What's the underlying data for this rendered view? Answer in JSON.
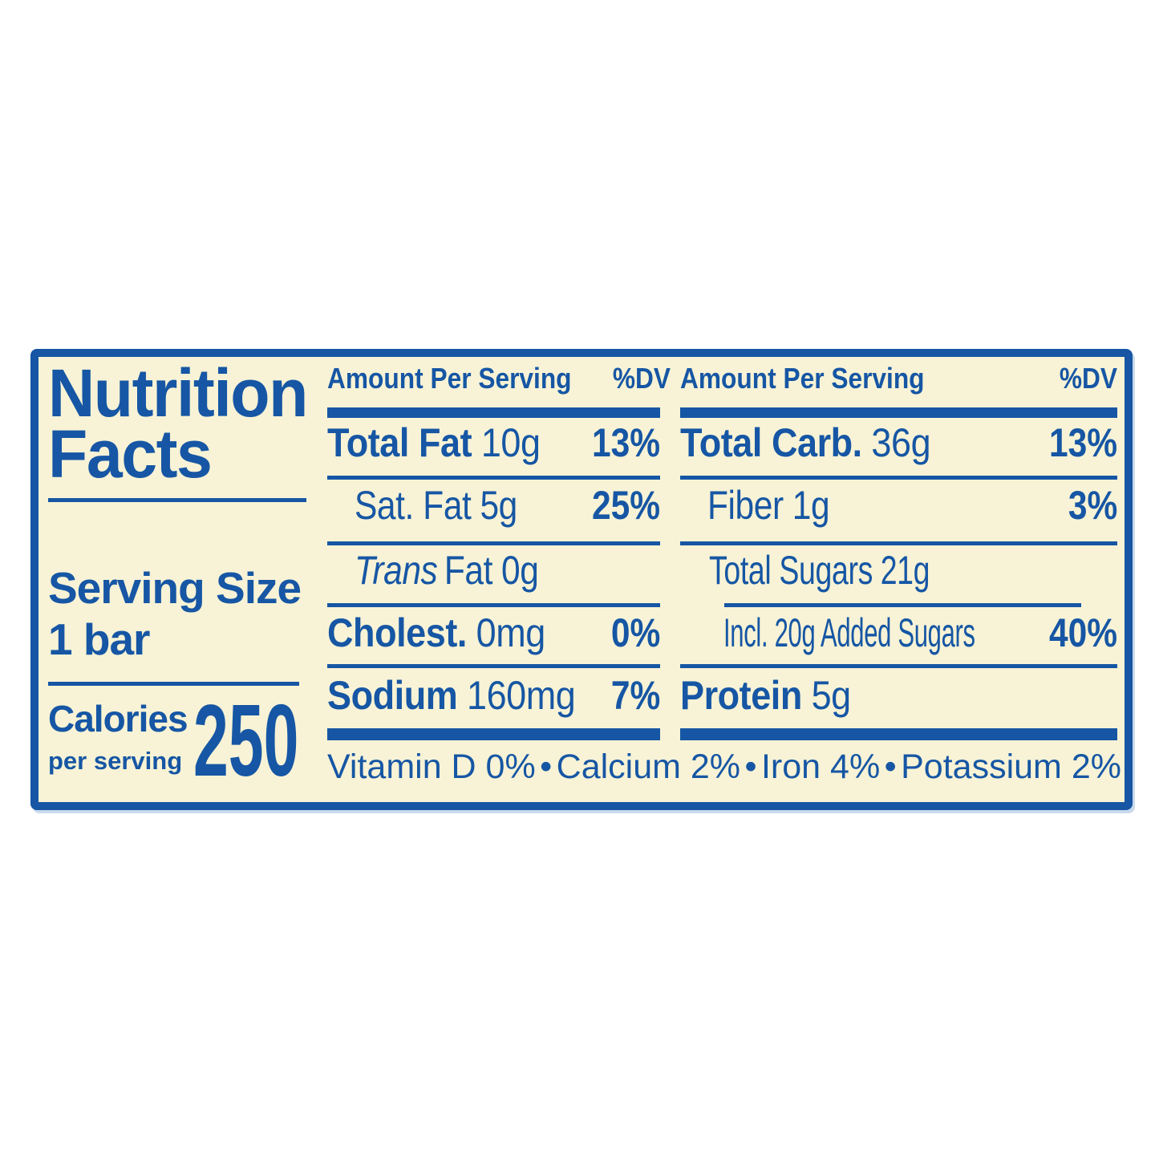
{
  "label": {
    "title": {
      "line1": "Nutrition",
      "line2": "Facts"
    },
    "serving_size": {
      "label": "Serving Size",
      "value": "1 bar"
    },
    "calories": {
      "label": "Calories",
      "sub": "per serving",
      "value": "250"
    },
    "columns": [
      {
        "header": "Amount Per Serving",
        "dv_header": "%DV",
        "rows": [
          {
            "name": "Total Fat",
            "value": "10g",
            "dv": "13%",
            "bold": true
          },
          {
            "name": "Sat. Fat",
            "value": "5g",
            "dv": "25%",
            "indent": true
          },
          {
            "italic": "Trans",
            "name": "Fat",
            "value": "0g",
            "indent": true
          },
          {
            "name": "Cholest.",
            "value": "0mg",
            "dv": "0%",
            "bold": true
          },
          {
            "name": "Sodium",
            "value": "160mg",
            "dv": "7%",
            "bold": true
          }
        ]
      },
      {
        "header": "Amount Per Serving",
        "dv_header": "%DV",
        "rows": [
          {
            "name": "Total Carb.",
            "value": "36g",
            "dv": "13%",
            "bold": true
          },
          {
            "name": "Fiber",
            "value": "1g",
            "dv": "3%",
            "indent": true
          },
          {
            "name": "Total Sugars",
            "value": "21g",
            "indent": true
          },
          {
            "name": "Incl. 20g Added Sugars",
            "dv": "40%",
            "indent": true
          },
          {
            "name": "Protein",
            "value": "5g",
            "bold": true
          }
        ]
      }
    ],
    "footnote": [
      "Vitamin D 0%",
      "Calcium 2%",
      "Iron 4%",
      "Potassium 2%"
    ],
    "bullet": "•",
    "colors": {
      "blue": "#1656a4",
      "cream": "#f8f3d6",
      "shadow": "#c9d9ec"
    }
  }
}
